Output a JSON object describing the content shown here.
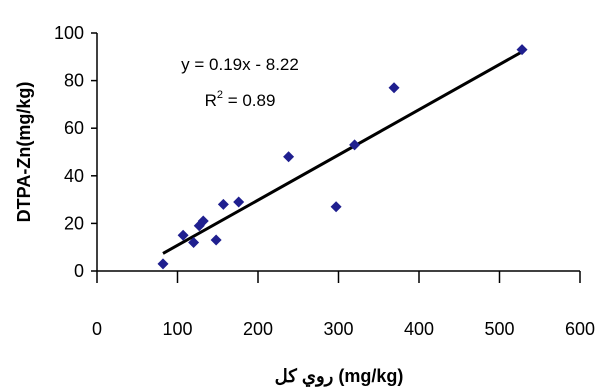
{
  "chart_data": {
    "type": "scatter",
    "title": "",
    "xlabel": "روي كل (mg/kg)",
    "ylabel": "DTPA-Zn(mg/kg)",
    "xlim": [
      0,
      600
    ],
    "ylim": [
      0,
      100
    ],
    "x_ticks": [
      "0",
      "100",
      "200",
      "300",
      "400",
      "500",
      "600"
    ],
    "y_ticks": [
      "0",
      "20",
      "40",
      "60",
      "80",
      "100"
    ],
    "grid": false,
    "legend": "none",
    "colors": {
      "points": "#1f1f8f",
      "trendline": "#000000"
    },
    "series": [
      {
        "marker": "diamond",
        "x": [
          82,
          107,
          120,
          127,
          132,
          148,
          157,
          176,
          238,
          297,
          320,
          369,
          528
        ],
        "y": [
          3,
          15,
          12,
          19,
          21,
          13,
          28,
          29,
          48,
          27,
          53,
          77,
          93
        ]
      }
    ],
    "trendline": {
      "slope": 0.19,
      "intercept": -8.22,
      "x_range": [
        82,
        528
      ],
      "equation_label": "y = 0.19x - 8.22",
      "r2_label_prefix": "R",
      "r2_label_sup": "2",
      "r2_label_suffix": " = 0.89"
    }
  }
}
